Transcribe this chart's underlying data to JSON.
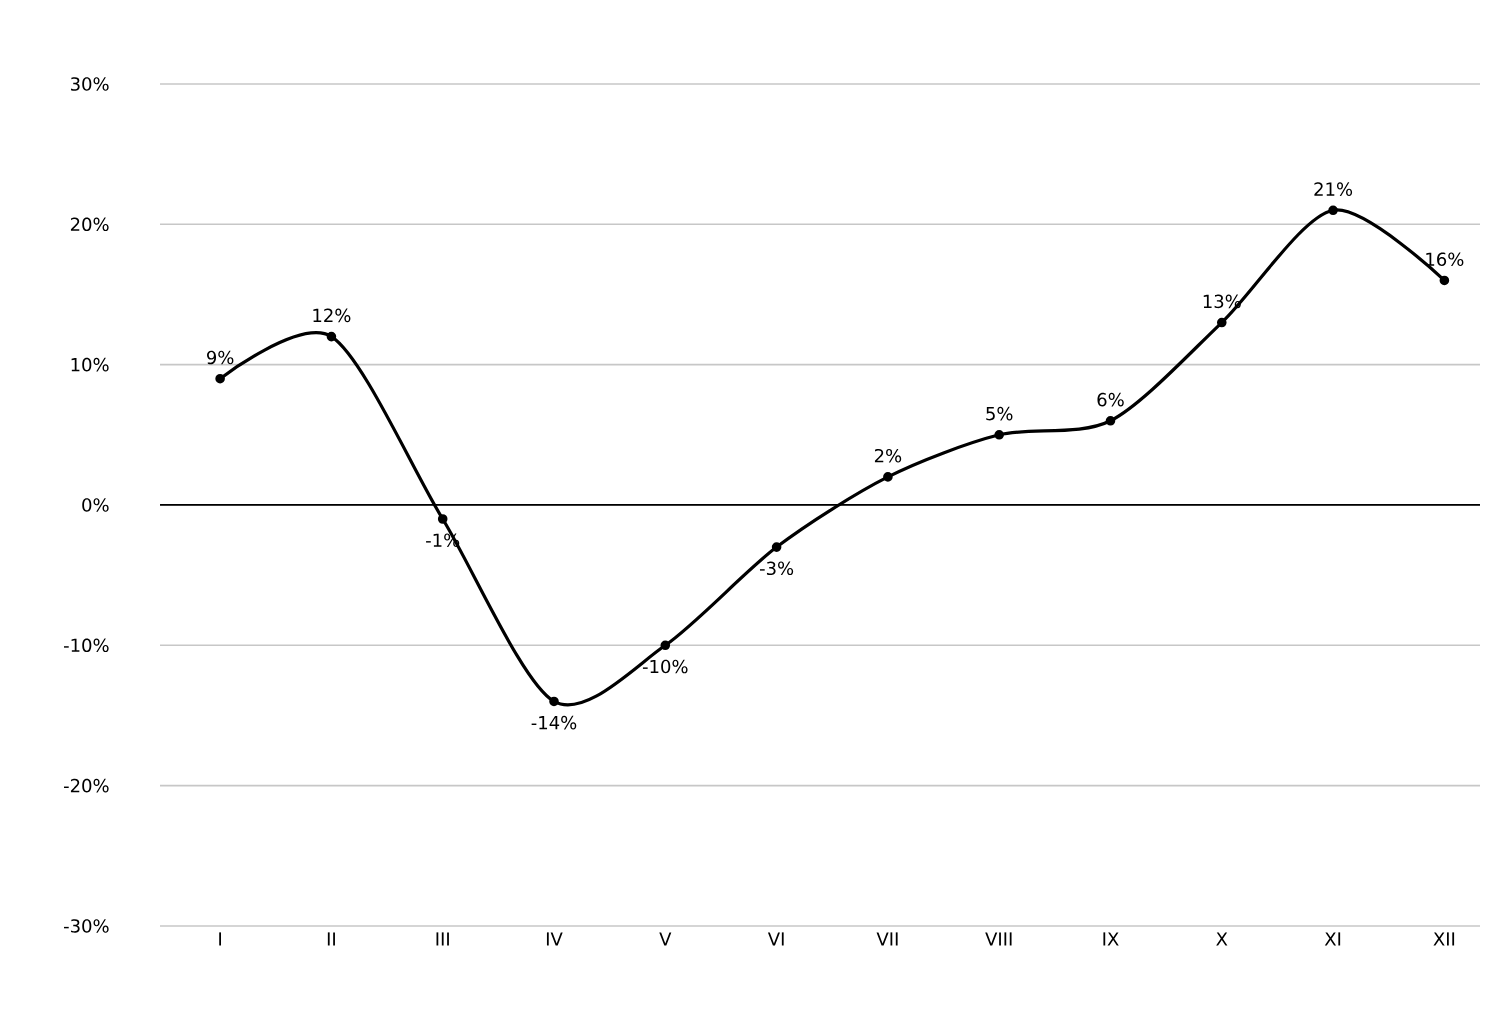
{
  "chart_data": {
    "type": "line",
    "categories": [
      "I",
      "II",
      "III",
      "IV",
      "V",
      "VI",
      "VII",
      "VIII",
      "IX",
      "X",
      "XI",
      "XII"
    ],
    "series": [
      {
        "color": "#000000",
        "values": [
          9,
          12,
          -1,
          -14,
          -10,
          -3,
          2,
          5,
          6,
          13,
          21,
          16
        ],
        "value_labels": [
          "9%",
          "12%",
          "-1%",
          "-14%",
          "-10%",
          "-3%",
          "2%",
          "5%",
          "6%",
          "13%",
          "21%",
          "16%"
        ]
      }
    ],
    "ylim": [
      -30,
      30
    ],
    "yticks": [
      {
        "value": -30,
        "label": "-30%"
      },
      {
        "value": -20,
        "label": "-20%"
      },
      {
        "value": -10,
        "label": "-10%"
      },
      {
        "value": 0,
        "label": "0%"
      },
      {
        "value": 10,
        "label": "10%"
      },
      {
        "value": 20,
        "label": "20%"
      },
      {
        "value": 30,
        "label": "30%"
      }
    ],
    "grid": "y",
    "marker": "circle",
    "line_style": "solid",
    "ref_lines": [
      {
        "axis": "y",
        "value": 0,
        "color": "#000000"
      }
    ]
  }
}
